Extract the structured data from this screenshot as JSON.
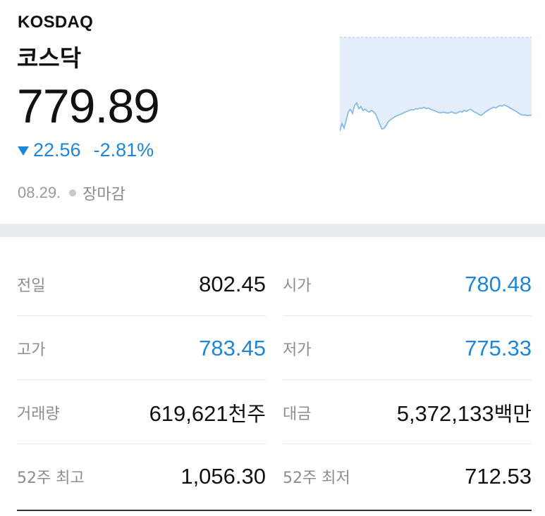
{
  "header": {
    "code": "KOSDAQ",
    "name": "코스닥",
    "price": "779.89",
    "change": "22.56",
    "change_rate": "-2.81%",
    "direction": "down",
    "date": "08.29.",
    "market_status": "장마감"
  },
  "colors": {
    "down": "#1e86d9",
    "chart_fill": "#e3eefa",
    "chart_line": "#7eb6e6",
    "band": "#e9ecef"
  },
  "stats": [
    [
      {
        "label": "전일",
        "value": "802.45",
        "unit": "",
        "color": "normal"
      },
      {
        "label": "시가",
        "value": "780.48",
        "unit": "",
        "color": "blue"
      }
    ],
    [
      {
        "label": "고가",
        "value": "783.45",
        "unit": "",
        "color": "blue"
      },
      {
        "label": "저가",
        "value": "775.33",
        "unit": "",
        "color": "blue"
      }
    ],
    [
      {
        "label": "거래량",
        "value": "619,621",
        "unit": "천주",
        "color": "normal"
      },
      {
        "label": "대금",
        "value": "5,372,133",
        "unit": "백만",
        "color": "normal"
      }
    ],
    [
      {
        "label": "52주 최고",
        "value": "1,056.30",
        "unit": "",
        "color": "normal"
      },
      {
        "label": "52주 최저",
        "value": "712.53",
        "unit": "",
        "color": "normal"
      }
    ]
  ],
  "chart_data": {
    "type": "area",
    "reference": 802.45,
    "ylim": [
      772.5,
      802.45
    ],
    "values": [
      775.3,
      777.5,
      776.2,
      778.4,
      780.9,
      781.6,
      780.4,
      782.7,
      783.45,
      781.8,
      782.4,
      781.2,
      781.7,
      781.1,
      780.8,
      781.3,
      780.9,
      780.2,
      778.8,
      777.2,
      775.9,
      776.1,
      777.0,
      778.0,
      778.6,
      779.0,
      779.4,
      779.7,
      780.0,
      780.2,
      780.5,
      780.8,
      781.0,
      781.3,
      781.5,
      781.4,
      781.8,
      781.7,
      782.0,
      781.9,
      782.2,
      781.8,
      782.0,
      781.6,
      781.4,
      781.2,
      780.9,
      780.7,
      780.6,
      780.8,
      780.7,
      780.5,
      780.6,
      780.9,
      780.6,
      780.4,
      780.7,
      781.0,
      780.8,
      781.3,
      781.0,
      781.4,
      781.6,
      781.2,
      780.8,
      780.5,
      780.1,
      779.9,
      780.3,
      780.8,
      781.2,
      781.6,
      781.9,
      782.2,
      782.0,
      782.4,
      782.7,
      782.5,
      782.9,
      782.6,
      782.3,
      781.9,
      781.6,
      781.2,
      780.9,
      780.4,
      780.1,
      779.9,
      780.0,
      779.8,
      779.9,
      779.89
    ]
  }
}
